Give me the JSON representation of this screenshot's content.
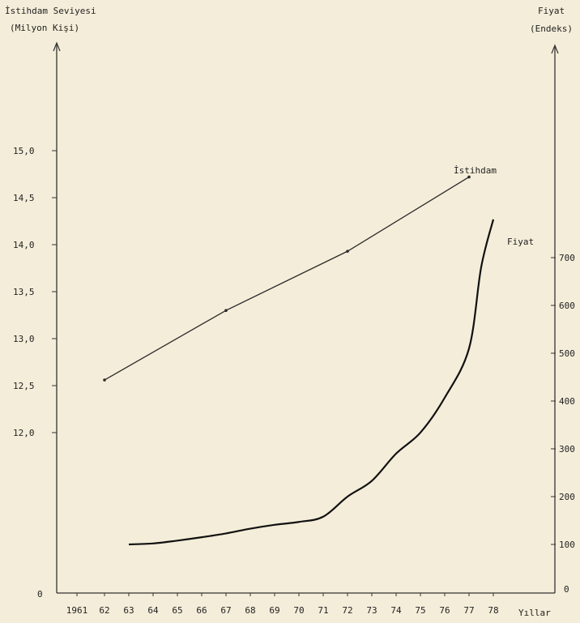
{
  "chart_data": {
    "type": "line",
    "left_axis": {
      "title_line1": "İstihdam Seviyesi",
      "title_line2": "(Milyon Kişi)",
      "ticks": [
        {
          "value": 12.0,
          "label": "12,0"
        },
        {
          "value": 12.5,
          "label": "12,5"
        },
        {
          "value": 13.0,
          "label": "13,0"
        },
        {
          "value": 13.5,
          "label": "13,5"
        },
        {
          "value": 14.0,
          "label": "14,0"
        },
        {
          "value": 14.5,
          "label": "14,5"
        },
        {
          "value": 15.0,
          "label": "15,0"
        }
      ],
      "zero_label": "0"
    },
    "right_axis": {
      "title_line1": "Fiyat",
      "title_line2": "(Endeks)",
      "ticks": [
        {
          "value": 100,
          "label": "100"
        },
        {
          "value": 200,
          "label": "200"
        },
        {
          "value": 300,
          "label": "300"
        },
        {
          "value": 400,
          "label": "400"
        },
        {
          "value": 500,
          "label": "500"
        },
        {
          "value": 600,
          "label": "600"
        },
        {
          "value": 700,
          "label": "700"
        }
      ],
      "zero_label": "0"
    },
    "x_axis": {
      "label": "Yıllar",
      "ticks": [
        {
          "year": 1961,
          "label": "1961"
        },
        {
          "year": 1962,
          "label": "62"
        },
        {
          "year": 1963,
          "label": "63"
        },
        {
          "year": 1964,
          "label": "64"
        },
        {
          "year": 1965,
          "label": "65"
        },
        {
          "year": 1966,
          "label": "66"
        },
        {
          "year": 1967,
          "label": "67"
        },
        {
          "year": 1968,
          "label": "68"
        },
        {
          "year": 1969,
          "label": "69"
        },
        {
          "year": 1970,
          "label": "70"
        },
        {
          "year": 1971,
          "label": "71"
        },
        {
          "year": 1972,
          "label": "72"
        },
        {
          "year": 1973,
          "label": "73"
        },
        {
          "year": 1974,
          "label": "74"
        },
        {
          "year": 1975,
          "label": "75"
        },
        {
          "year": 1976,
          "label": "76"
        },
        {
          "year": 1977,
          "label": "77"
        },
        {
          "year": 1978,
          "label": "78"
        }
      ]
    },
    "series": [
      {
        "name": "İstihdam",
        "axis": "left",
        "points": [
          {
            "x": 1962,
            "y": 12.56
          },
          {
            "x": 1967,
            "y": 13.3
          },
          {
            "x": 1972,
            "y": 13.93
          },
          {
            "x": 1977,
            "y": 14.72
          }
        ]
      },
      {
        "name": "Fiyat",
        "axis": "right",
        "points": [
          {
            "x": 1963,
            "y": 100
          },
          {
            "x": 1964,
            "y": 102
          },
          {
            "x": 1965,
            "y": 108
          },
          {
            "x": 1966,
            "y": 115
          },
          {
            "x": 1967,
            "y": 123
          },
          {
            "x": 1968,
            "y": 133
          },
          {
            "x": 1969,
            "y": 141
          },
          {
            "x": 1970,
            "y": 147
          },
          {
            "x": 1971,
            "y": 158
          },
          {
            "x": 1972,
            "y": 200
          },
          {
            "x": 1973,
            "y": 233
          },
          {
            "x": 1974,
            "y": 290
          },
          {
            "x": 1975,
            "y": 334
          },
          {
            "x": 1976,
            "y": 407
          },
          {
            "x": 1977,
            "y": 510
          },
          {
            "x": 1977.5,
            "y": 680
          },
          {
            "x": 1978,
            "y": 780
          }
        ]
      }
    ]
  }
}
